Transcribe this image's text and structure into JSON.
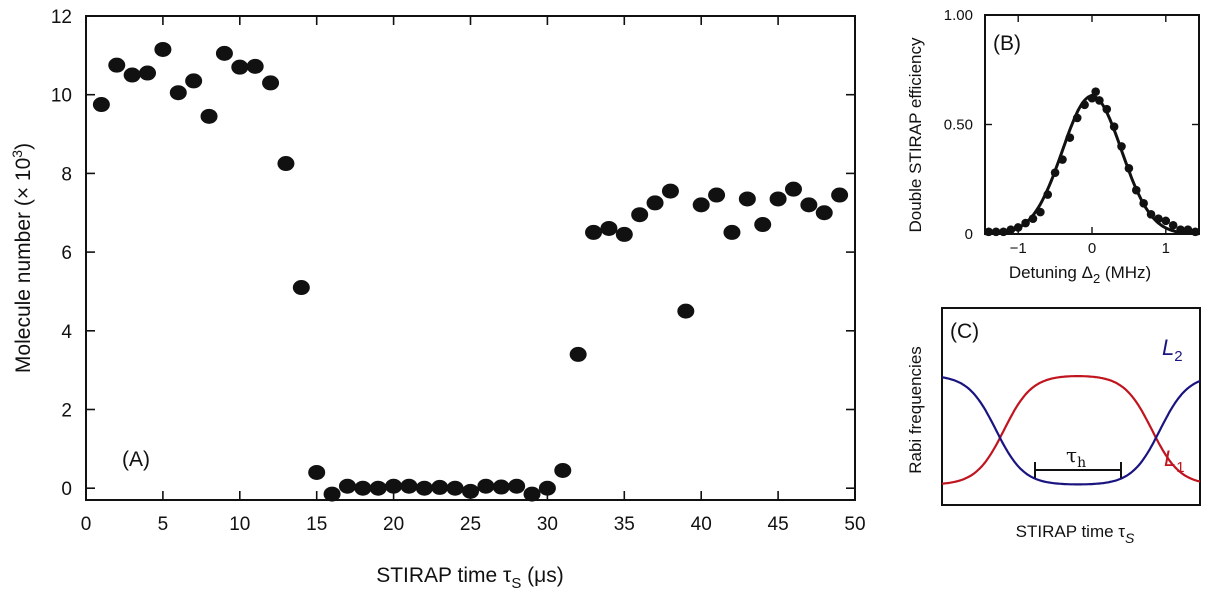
{
  "chart_data": [
    {
      "panel": "(A)",
      "type": "scatter",
      "xlabel": "STIRAP time τS (μs)",
      "ylabel": "Molecule number (× 10³)",
      "xlim": [
        0,
        50
      ],
      "ylim": [
        -0.3,
        12
      ],
      "xticks": [
        "0",
        "5",
        "10",
        "15",
        "20",
        "25",
        "30",
        "35",
        "40",
        "45",
        "50"
      ],
      "yticks": [
        "0",
        "2",
        "4",
        "6",
        "8",
        "10",
        "12"
      ],
      "points": [
        [
          1,
          9.75
        ],
        [
          2,
          10.75
        ],
        [
          3,
          10.5
        ],
        [
          4,
          10.55
        ],
        [
          5,
          11.15
        ],
        [
          6,
          10.05
        ],
        [
          7,
          10.35
        ],
        [
          8,
          9.45
        ],
        [
          9,
          11.05
        ],
        [
          10,
          10.7
        ],
        [
          11,
          10.72
        ],
        [
          12,
          10.3
        ],
        [
          13,
          8.25
        ],
        [
          14,
          5.1
        ],
        [
          15,
          0.4
        ],
        [
          16,
          -0.15
        ],
        [
          17,
          0.05
        ],
        [
          18,
          0.0
        ],
        [
          19,
          0.0
        ],
        [
          20,
          0.05
        ],
        [
          21,
          0.05
        ],
        [
          22,
          0.0
        ],
        [
          23,
          0.02
        ],
        [
          24,
          0.0
        ],
        [
          25,
          -0.08
        ],
        [
          26,
          0.05
        ],
        [
          27,
          0.03
        ],
        [
          28,
          0.05
        ],
        [
          29,
          -0.15
        ],
        [
          30,
          0.0
        ],
        [
          31,
          0.45
        ],
        [
          32,
          3.4
        ],
        [
          33,
          6.5
        ],
        [
          34,
          6.6
        ],
        [
          35,
          6.45
        ],
        [
          36,
          6.95
        ],
        [
          37,
          7.25
        ],
        [
          38,
          7.55
        ],
        [
          39,
          4.5
        ],
        [
          40,
          7.2
        ],
        [
          41,
          7.45
        ],
        [
          42,
          6.5
        ],
        [
          43,
          7.35
        ],
        [
          44,
          6.7
        ],
        [
          45,
          7.35
        ],
        [
          46,
          7.6
        ],
        [
          47,
          7.2
        ],
        [
          48,
          7.0
        ],
        [
          49,
          7.45
        ]
      ]
    },
    {
      "panel": "(B)",
      "type": "scatter",
      "xlabel": "Detuning Δ2 (MHz)",
      "ylabel": "Double STIRAP efficiency",
      "xlim": [
        -1.45,
        1.45
      ],
      "ylim": [
        0,
        1.0
      ],
      "xticks": [
        "−1",
        "0",
        "1"
      ],
      "yticks": [
        "0",
        "0.50",
        "1.00"
      ],
      "fit": {
        "form": "gaussian",
        "amplitude": 0.63,
        "center": 0.0,
        "sigma": 0.4
      },
      "points": [
        [
          -1.4,
          0.01
        ],
        [
          -1.3,
          0.01
        ],
        [
          -1.2,
          0.01
        ],
        [
          -1.1,
          0.02
        ],
        [
          -1.0,
          0.03
        ],
        [
          -0.9,
          0.05
        ],
        [
          -0.8,
          0.07
        ],
        [
          -0.7,
          0.1
        ],
        [
          -0.6,
          0.18
        ],
        [
          -0.5,
          0.28
        ],
        [
          -0.4,
          0.34
        ],
        [
          -0.3,
          0.44
        ],
        [
          -0.2,
          0.53
        ],
        [
          -0.1,
          0.59
        ],
        [
          0.0,
          0.62
        ],
        [
          0.05,
          0.65
        ],
        [
          0.1,
          0.61
        ],
        [
          0.2,
          0.57
        ],
        [
          0.3,
          0.49
        ],
        [
          0.4,
          0.4
        ],
        [
          0.5,
          0.3
        ],
        [
          0.6,
          0.2
        ],
        [
          0.7,
          0.14
        ],
        [
          0.8,
          0.09
        ],
        [
          0.9,
          0.07
        ],
        [
          1.0,
          0.06
        ],
        [
          1.1,
          0.04
        ],
        [
          1.2,
          0.02
        ],
        [
          1.3,
          0.02
        ],
        [
          1.4,
          0.01
        ]
      ]
    },
    {
      "panel": "(C)",
      "type": "line",
      "xlabel": "STIRAP time τS",
      "ylabel": "Rabi frequencies",
      "series": [
        {
          "name": "L1",
          "color": "#c0141e"
        },
        {
          "name": "L2",
          "color": "#1a1480"
        }
      ],
      "annotation": "τh"
    }
  ],
  "labels": {
    "a_panel": "(A)",
    "a_xlabel_main": "STIRAP time τ",
    "a_xlabel_sub": "S",
    "a_xlabel_unit": " (μs)",
    "a_ylabel_main": "Molecule number (× 10",
    "a_ylabel_sup": "3",
    "a_ylabel_end": ")",
    "b_panel": "(B)",
    "b_xlabel_main": "Detuning Δ",
    "b_xlabel_sub": "2",
    "b_xlabel_unit": " (MHz)",
    "b_ylabel": "Double STIRAP efficiency",
    "c_panel": "(C)",
    "c_xlabel_main": "STIRAP time τ",
    "c_xlabel_sub": "S",
    "c_ylabel": "Rabi frequencies",
    "c_L1": "L",
    "c_L1_sub": "1",
    "c_L2": "L",
    "c_L2_sub": "2",
    "c_tau": "τ",
    "c_tau_sub": "h"
  },
  "colors": {
    "l1": "#c0141e",
    "l2": "#1a1480",
    "ink": "#111111"
  }
}
